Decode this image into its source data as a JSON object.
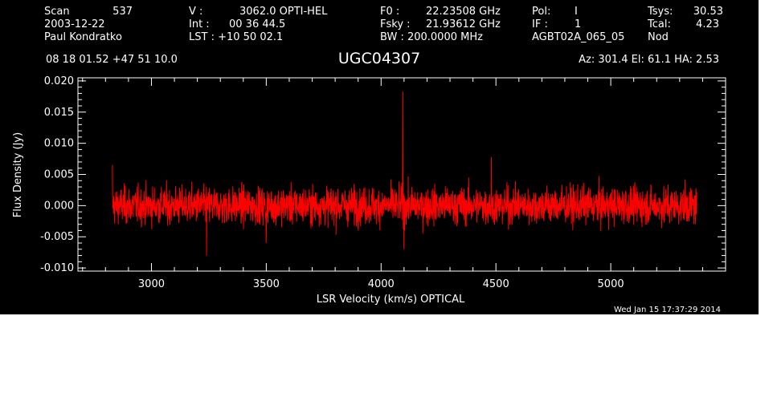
{
  "header": {
    "row1": [
      {
        "label": "Scan",
        "value": "537"
      },
      {
        "label": "V   :",
        "value": "3062.0 OPTI-HEL"
      },
      {
        "label": "F0   :",
        "value": "22.23508 GHz"
      },
      {
        "label": "Pol:",
        "value": "I"
      },
      {
        "label": "Tsys:",
        "value": "30.53"
      }
    ],
    "row2": [
      {
        "label": "2003-12-22",
        "value": ""
      },
      {
        "label": "Int  :",
        "value": "00 36 44.5"
      },
      {
        "label": "Fsky :",
        "value": "21.93612 GHz"
      },
      {
        "label": "IF :",
        "value": "1"
      },
      {
        "label": "Tcal:",
        "value": "4.23"
      }
    ],
    "row3": [
      {
        "label": "Paul Kondratko",
        "value": ""
      },
      {
        "label": "LST : +10 50 02.1",
        "value": ""
      },
      {
        "label": "BW   : 200.0000 MHz",
        "value": ""
      },
      {
        "label": "AGBT02A_065_05",
        "value": ""
      },
      {
        "label": "Nod",
        "value": ""
      }
    ],
    "coords": "08 18 01.52  +47 51 10.0",
    "source": "UGC04307",
    "pointing": "Az: 301.4   El:  61.1   HA:  2.53"
  },
  "timestamp": "Wed Jan 15 17:37:29 2014",
  "colors": {
    "background": "#000000",
    "foreground": "#ffffff",
    "trace": "#ff0000"
  },
  "chart_data": {
    "type": "line",
    "title": "UGC04307",
    "xlabel": "LSR Velocity (km/s) OPTICAL",
    "ylabel": "Flux Density (Jy)",
    "xlim": [
      2680,
      5500
    ],
    "ylim": [
      -0.0105,
      0.0205
    ],
    "xticks": [
      3000,
      3500,
      4000,
      4500,
      5000
    ],
    "xtick_labels": [
      "3000",
      "3500",
      "4000",
      "4500",
      "5000"
    ],
    "yticks": [
      -0.01,
      -0.005,
      0.0,
      0.005,
      0.01,
      0.015,
      0.02
    ],
    "ytick_labels": [
      "-0.010",
      "-0.005",
      "0.000",
      "0.005",
      "0.010",
      "0.015",
      "0.020"
    ],
    "grid": false,
    "series": [
      {
        "velocity_range": [
          2830,
          5375
        ],
        "noise_rms": 0.0022,
        "peaks": [
          {
            "x": 2830,
            "y": 0.0065
          },
          {
            "x": 3240,
            "y": -0.008
          },
          {
            "x": 3500,
            "y": -0.006
          },
          {
            "x": 4095,
            "y": 0.0183
          },
          {
            "x": 4100,
            "y": -0.007
          },
          {
            "x": 4480,
            "y": 0.0078
          }
        ]
      }
    ]
  }
}
